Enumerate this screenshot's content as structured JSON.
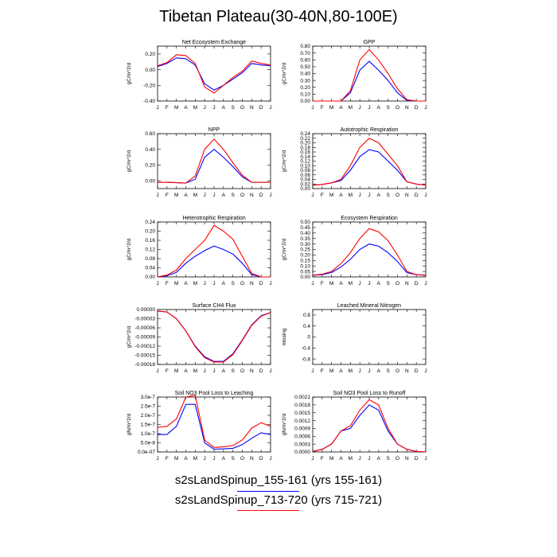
{
  "title": "Tibetan Plateau(30-40N,80-100E)",
  "colors": {
    "series1": "#0000ff",
    "series2": "#ff0000",
    "axis": "#000000"
  },
  "legend": [
    {
      "label": "s2sLandSpinup_155-161 (yrs 155-161)",
      "color": "#0000ff"
    },
    {
      "label": "s2sLandSpinup_713-720 (yrs 715-721)",
      "color": "#ff0000"
    }
  ],
  "chart_data": [
    {
      "type": "line",
      "title": "Net Ecosystem Exchange",
      "ylabel": "gC/m^2/d",
      "categories": [
        "J",
        "F",
        "M",
        "A",
        "M",
        "J",
        "J",
        "A",
        "S",
        "O",
        "N",
        "D",
        "J"
      ],
      "ylim": [
        -0.4,
        0.3
      ],
      "yticks": [
        -0.4,
        -0.2,
        0.0,
        0.2
      ],
      "ytick_labels": [
        "-0.40",
        "-0.20",
        "0.00",
        "0.20"
      ],
      "series": [
        {
          "values": [
            0.04,
            0.08,
            0.15,
            0.14,
            0.06,
            -0.18,
            -0.26,
            -0.2,
            -0.12,
            -0.04,
            0.08,
            0.06,
            0.05
          ]
        },
        {
          "values": [
            0.05,
            0.09,
            0.19,
            0.18,
            0.08,
            -0.22,
            -0.3,
            -0.2,
            -0.1,
            -0.02,
            0.11,
            0.08,
            0.06
          ]
        }
      ]
    },
    {
      "type": "line",
      "title": "GPP",
      "ylabel": "gC/m^2/d",
      "categories": [
        "J",
        "F",
        "M",
        "A",
        "M",
        "J",
        "J",
        "A",
        "S",
        "O",
        "N",
        "D",
        "J"
      ],
      "ylim": [
        0.0,
        0.8
      ],
      "yticks": [
        0.0,
        0.1,
        0.2,
        0.3,
        0.4,
        0.5,
        0.6,
        0.7,
        0.8
      ],
      "ytick_labels": [
        "0.00",
        "0.10",
        "0.20",
        "0.30",
        "0.40",
        "0.50",
        "0.60",
        "0.70",
        "0.80"
      ],
      "series": [
        {
          "values": [
            0.0,
            0.0,
            0.0,
            0.0,
            0.12,
            0.45,
            0.58,
            0.45,
            0.3,
            0.12,
            0.01,
            0.0,
            0.0
          ]
        },
        {
          "values": [
            0.0,
            0.0,
            0.0,
            0.0,
            0.15,
            0.6,
            0.75,
            0.6,
            0.4,
            0.18,
            0.02,
            0.0,
            0.0
          ]
        }
      ]
    },
    {
      "type": "line",
      "title": "NPP",
      "ylabel": "gC/m^2/d",
      "categories": [
        "J",
        "F",
        "M",
        "A",
        "M",
        "J",
        "J",
        "A",
        "S",
        "O",
        "N",
        "D",
        "J"
      ],
      "ylim": [
        -0.1,
        0.6
      ],
      "yticks": [
        0.0,
        0.2,
        0.4,
        0.6
      ],
      "ytick_labels": [
        "0.00",
        "0.20",
        "0.40",
        "0.60"
      ],
      "series": [
        {
          "values": [
            -0.02,
            -0.02,
            -0.025,
            -0.03,
            0.02,
            0.3,
            0.4,
            0.3,
            0.18,
            0.05,
            -0.02,
            -0.02,
            -0.02
          ]
        },
        {
          "values": [
            -0.02,
            -0.02,
            -0.025,
            -0.03,
            0.06,
            0.4,
            0.53,
            0.4,
            0.23,
            0.07,
            -0.02,
            -0.02,
            -0.02
          ]
        }
      ]
    },
    {
      "type": "line",
      "title": "Autotrophic Respiration",
      "ylabel": "gC/m^2/d",
      "categories": [
        "J",
        "F",
        "M",
        "A",
        "M",
        "J",
        "J",
        "A",
        "S",
        "O",
        "N",
        "D",
        "J"
      ],
      "ylim": [
        0.0,
        0.24
      ],
      "yticks": [
        0.0,
        0.02,
        0.04,
        0.06,
        0.08,
        0.1,
        0.12,
        0.14,
        0.16,
        0.18,
        0.2,
        0.22,
        0.24
      ],
      "ytick_labels": [
        "0.00",
        "0.02",
        "0.04",
        "0.06",
        "0.08",
        "0.10",
        "0.12",
        "0.14",
        "0.16",
        "0.18",
        "0.20",
        "0.22",
        "0.24"
      ],
      "series": [
        {
          "values": [
            0.015,
            0.018,
            0.025,
            0.035,
            0.08,
            0.14,
            0.17,
            0.16,
            0.12,
            0.08,
            0.03,
            0.02,
            0.015
          ]
        },
        {
          "values": [
            0.015,
            0.018,
            0.025,
            0.04,
            0.1,
            0.18,
            0.22,
            0.2,
            0.15,
            0.1,
            0.03,
            0.02,
            0.015
          ]
        }
      ]
    },
    {
      "type": "line",
      "title": "Heterotrophic Respiration",
      "ylabel": "gC/m^2/d",
      "categories": [
        "J",
        "F",
        "M",
        "A",
        "M",
        "J",
        "J",
        "A",
        "S",
        "O",
        "N",
        "D",
        "J"
      ],
      "ylim": [
        0.0,
        0.24
      ],
      "yticks": [
        0.0,
        0.04,
        0.08,
        0.12,
        0.16,
        0.2,
        0.24
      ],
      "ytick_labels": [
        "0.00",
        "0.04",
        "0.08",
        "0.12",
        "0.16",
        "0.20",
        "0.24"
      ],
      "series": [
        {
          "values": [
            0.0,
            0.005,
            0.02,
            0.06,
            0.09,
            0.115,
            0.135,
            0.12,
            0.1,
            0.06,
            0.01,
            0.0,
            0.0
          ]
        },
        {
          "values": [
            0.0,
            0.008,
            0.03,
            0.08,
            0.12,
            0.16,
            0.225,
            0.2,
            0.165,
            0.09,
            0.015,
            0.0,
            0.0
          ]
        }
      ]
    },
    {
      "type": "line",
      "title": "Ecosystem Respiration",
      "ylabel": "gC/m^2/d",
      "categories": [
        "J",
        "F",
        "M",
        "A",
        "M",
        "J",
        "J",
        "A",
        "S",
        "O",
        "N",
        "D",
        "J"
      ],
      "ylim": [
        0.0,
        0.5
      ],
      "yticks": [
        0.0,
        0.05,
        0.1,
        0.15,
        0.2,
        0.25,
        0.3,
        0.35,
        0.4,
        0.45,
        0.5
      ],
      "ytick_labels": [
        "0.00",
        "0.05",
        "0.10",
        "0.15",
        "0.20",
        "0.25",
        "0.30",
        "0.35",
        "0.40",
        "0.45",
        "0.50"
      ],
      "series": [
        {
          "values": [
            0.015,
            0.02,
            0.04,
            0.09,
            0.16,
            0.25,
            0.3,
            0.28,
            0.22,
            0.14,
            0.04,
            0.02,
            0.015
          ]
        },
        {
          "values": [
            0.015,
            0.025,
            0.05,
            0.12,
            0.22,
            0.35,
            0.44,
            0.41,
            0.33,
            0.2,
            0.05,
            0.02,
            0.015
          ]
        }
      ]
    },
    {
      "type": "line",
      "title": "Surface CH4 Flux",
      "ylabel": "gC/m^2/d",
      "categories": [
        "J",
        "F",
        "M",
        "A",
        "M",
        "J",
        "J",
        "A",
        "S",
        "O",
        "N",
        "D",
        "J"
      ],
      "ylim": [
        -0.00018,
        0.0
      ],
      "yticks": [
        -0.00018,
        -0.00015,
        -0.00012,
        -9e-05,
        -6e-05,
        -3e-05,
        0.0
      ],
      "ytick_labels": [
        "-0.00018",
        "-0.00015",
        "-0.00012",
        "-0.00009",
        "-0.00006",
        "-0.00003",
        "0.00000"
      ],
      "series": [
        {
          "values": [
            -5e-06,
            -8e-06,
            -3e-05,
            -7e-05,
            -0.00012,
            -0.000155,
            -0.00017,
            -0.00017,
            -0.000145,
            -0.0001,
            -5e-05,
            -2e-05,
            -1e-05
          ]
        },
        {
          "values": [
            -5e-06,
            -8e-06,
            -3e-05,
            -7e-05,
            -0.000122,
            -0.000158,
            -0.000172,
            -0.000172,
            -0.000148,
            -0.000102,
            -5.2e-05,
            -2.2e-05,
            -1e-05
          ]
        }
      ]
    },
    {
      "type": "line",
      "title": "Leached Mineral Nitrogen",
      "ylabel": "missing",
      "categories": [
        "J",
        "F",
        "M",
        "A",
        "M",
        "J",
        "J",
        "A",
        "S",
        "O",
        "N",
        "D",
        "J"
      ],
      "ylim": [
        -1.0,
        1.0
      ],
      "yticks": [
        -0.8,
        -0.4,
        0.0,
        0.4,
        0.8
      ],
      "ytick_labels": [
        "-0.8",
        "-0.4",
        "0",
        "0.4",
        "0.8"
      ],
      "series": []
    },
    {
      "type": "line",
      "title": "Soil NO3 Pool Loss to Leaching",
      "ylabel": "gN/m^2/d",
      "categories": [
        "J",
        "F",
        "M",
        "A",
        "M",
        "J",
        "J",
        "A",
        "S",
        "O",
        "N",
        "D",
        "J"
      ],
      "ylim": [
        0.0,
        3e-07
      ],
      "yticks": [
        0.0,
        5e-08,
        1e-07,
        1.5e-07,
        2e-07,
        2.5e-07,
        3e-07
      ],
      "ytick_labels": [
        "0.0e-07",
        "5.0e-8",
        "1.0e-7",
        "1.5e-7",
        "2.0e-7",
        "2.5e-7",
        "3.0e-7"
      ],
      "series": [
        {
          "values": [
            9.5e-08,
            9.5e-08,
            1.4e-07,
            2.6e-07,
            2.6e-07,
            5e-08,
            1.5e-08,
            1.7e-08,
            2e-08,
            4e-08,
            7.5e-08,
            1.05e-07,
            9.5e-08
          ]
        },
        {
          "values": [
            1.35e-07,
            1.4e-07,
            1.8e-07,
            3e-07,
            3.1e-07,
            6.5e-08,
            2.5e-08,
            2.8e-08,
            3.5e-08,
            6.5e-08,
            1.3e-07,
            1.6e-07,
            1.4e-07
          ]
        }
      ]
    },
    {
      "type": "line",
      "title": "Soil NO3 Pool Loss to Runoff",
      "ylabel": "gN/m^2/d",
      "categories": [
        "J",
        "F",
        "M",
        "A",
        "M",
        "J",
        "J",
        "A",
        "S",
        "O",
        "N",
        "D",
        "J"
      ],
      "ylim": [
        0.0,
        0.0021
      ],
      "yticks": [
        0.0,
        0.0003,
        0.0006,
        0.0009,
        0.0012,
        0.0015,
        0.0018,
        0.0021
      ],
      "ytick_labels": [
        "0.0000",
        "0.0003",
        "0.0006",
        "0.0009",
        "0.0012",
        "0.0015",
        "0.0018",
        "0.0021"
      ],
      "series": [
        {
          "values": [
            2e-05,
            0.0001,
            0.0003,
            0.0008,
            0.0009,
            0.0014,
            0.0018,
            0.0016,
            0.0008,
            0.0003,
            0.0001,
            2e-05,
            0.0
          ]
        },
        {
          "values": [
            2e-05,
            0.0001,
            0.0003,
            0.0008,
            0.001,
            0.0016,
            0.002,
            0.0018,
            0.0009,
            0.0003,
            0.0001,
            2e-05,
            0.0
          ]
        }
      ]
    }
  ]
}
